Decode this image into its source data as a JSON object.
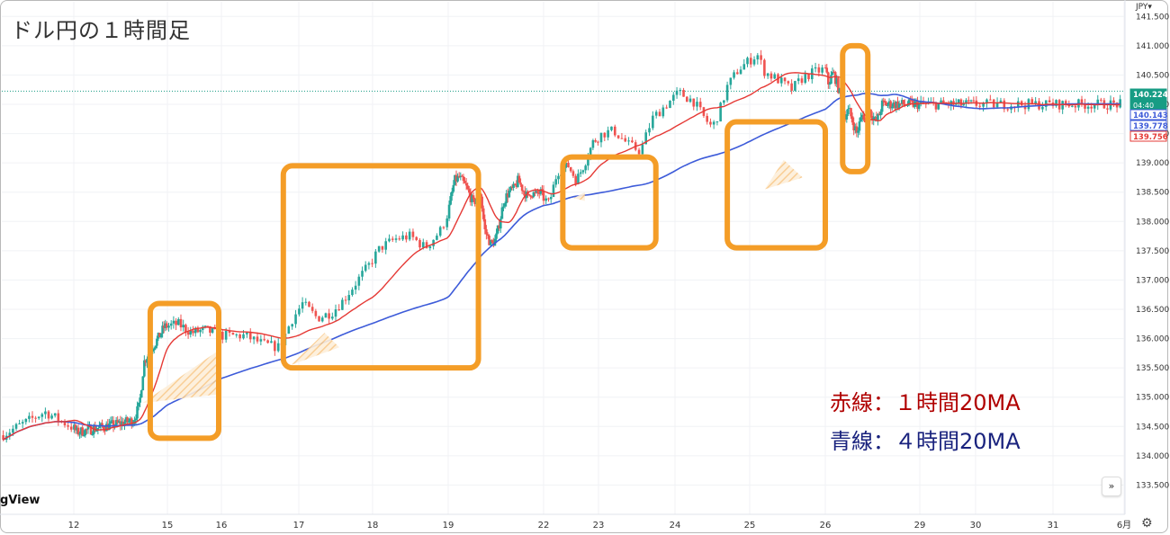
{
  "title": "ドル円の１時間足",
  "legend": {
    "red": "赤線：１時間20MA",
    "blue": "青線：４時間20MA"
  },
  "watermark": "gView",
  "currency": "JPY",
  "settings_icon": "gear-icon",
  "scroll_icon": "double-chevron-right-icon",
  "scroll_glyph": "»",
  "gear_glyph": "⚙",
  "colors": {
    "ma1h": "#e53935",
    "ma4h": "#3d5bd9",
    "up": "#26a69a",
    "down": "#ef5350",
    "highlight": "#f49d27",
    "wedge": "#f8c98a",
    "price_badge": "#179c84",
    "ma4h_badge": "#3d5bd9",
    "ma1h_badge": "#e53935"
  },
  "chart_data": {
    "type": "candlestick",
    "ylim": [
      133.3,
      141.65
    ],
    "y_ticks": [
      "141.500",
      "141.000",
      "140.500",
      "140.000",
      "139.500",
      "139.000",
      "138.500",
      "138.000",
      "137.500",
      "137.000",
      "136.500",
      "136.000",
      "135.500",
      "135.000",
      "134.500",
      "134.000",
      "133.500"
    ],
    "x_ticks": [
      {
        "label": "12",
        "x": 12
      },
      {
        "label": "15",
        "x": 15
      },
      {
        "label": "16",
        "x": 16
      },
      {
        "label": "17",
        "x": 17
      },
      {
        "label": "18",
        "x": 18
      },
      {
        "label": "19",
        "x": 19
      },
      {
        "label": "22",
        "x": 22
      },
      {
        "label": "23",
        "x": 23
      },
      {
        "label": "24",
        "x": 24
      },
      {
        "label": "25",
        "x": 25
      },
      {
        "label": "26",
        "x": 26
      },
      {
        "label": "29",
        "x": 29
      },
      {
        "label": "30",
        "x": 30
      },
      {
        "label": "31",
        "x": 31
      },
      {
        "label": "6月",
        "x": 32
      }
    ],
    "price_labels": [
      {
        "name": "current-price",
        "value": "140.224",
        "sub": "04:40"
      },
      {
        "name": "ma4h-price",
        "value": "140.143"
      },
      {
        "name": "ma1h-price",
        "value": "139.778"
      },
      {
        "name": "low-price",
        "value": "139.756"
      }
    ],
    "current_price": 140.224,
    "candles": [
      [
        11.0,
        134.35
      ],
      [
        11.6,
        134.75
      ],
      [
        12.1,
        134.4
      ],
      [
        13.9,
        134.6
      ],
      [
        14.1,
        134.85
      ],
      [
        14.25,
        135.6
      ],
      [
        14.45,
        135.8
      ],
      [
        14.7,
        136.0
      ],
      [
        14.9,
        136.2
      ],
      [
        15.2,
        136.25
      ],
      [
        15.45,
        136.1
      ],
      [
        15.7,
        136.15
      ],
      [
        16.0,
        136.05
      ],
      [
        16.3,
        136.05
      ],
      [
        16.55,
        135.9
      ],
      [
        16.75,
        135.85
      ],
      [
        16.9,
        136.3
      ],
      [
        17.05,
        136.6
      ],
      [
        17.25,
        136.35
      ],
      [
        17.45,
        136.45
      ],
      [
        17.6,
        136.65
      ],
      [
        17.8,
        137.0
      ],
      [
        17.95,
        137.25
      ],
      [
        18.1,
        137.55
      ],
      [
        18.3,
        137.7
      ],
      [
        18.5,
        137.75
      ],
      [
        18.7,
        137.55
      ],
      [
        18.9,
        137.85
      ],
      [
        19.05,
        138.3
      ],
      [
        19.2,
        138.7
      ],
      [
        19.35,
        138.75
      ],
      [
        19.55,
        138.6
      ],
      [
        19.8,
        138.3
      ],
      [
        20.0,
        138.55
      ],
      [
        20.15,
        137.85
      ],
      [
        20.35,
        137.6
      ],
      [
        20.5,
        137.7
      ],
      [
        20.6,
        137.95
      ],
      [
        20.75,
        138.35
      ],
      [
        20.9,
        138.5
      ],
      [
        21.05,
        138.55
      ],
      [
        21.2,
        138.7
      ],
      [
        21.35,
        138.55
      ],
      [
        21.5,
        138.4
      ],
      [
        21.6,
        138.5
      ],
      [
        21.75,
        138.45
      ],
      [
        21.9,
        138.5
      ],
      [
        22.1,
        138.3
      ],
      [
        22.25,
        138.85
      ],
      [
        22.45,
        138.95
      ],
      [
        22.6,
        138.7
      ],
      [
        22.75,
        139.0
      ],
      [
        22.9,
        139.35
      ],
      [
        23.05,
        139.5
      ],
      [
        23.2,
        139.55
      ],
      [
        23.4,
        139.3
      ],
      [
        23.55,
        139.2
      ],
      [
        23.7,
        139.75
      ],
      [
        23.85,
        139.95
      ],
      [
        24.05,
        140.2
      ],
      [
        24.25,
        140.05
      ],
      [
        24.4,
        139.75
      ],
      [
        24.5,
        139.6
      ],
      [
        24.6,
        139.9
      ],
      [
        24.7,
        140.3
      ],
      [
        24.85,
        140.6
      ],
      [
        25.0,
        140.75
      ],
      [
        25.1,
        140.85
      ],
      [
        25.2,
        140.55
      ],
      [
        25.4,
        140.4
      ],
      [
        25.55,
        140.25
      ],
      [
        25.7,
        140.45
      ],
      [
        25.85,
        140.55
      ],
      [
        26.0,
        140.6
      ],
      [
        26.1,
        140.35
      ],
      [
        26.25,
        140.55
      ],
      [
        26.4,
        140.3
      ],
      [
        26.5,
        140.1
      ],
      [
        26.6,
        139.8
      ],
      [
        26.75,
        139.9
      ],
      [
        26.9,
        139.65
      ],
      [
        27.0,
        139.5
      ],
      [
        27.1,
        139.7
      ],
      [
        27.2,
        139.85
      ],
      [
        27.3,
        139.6
      ],
      [
        27.4,
        139.9
      ],
      [
        27.5,
        139.8
      ],
      [
        27.6,
        139.7
      ],
      [
        27.7,
        139.8
      ],
      [
        27.8,
        140.0
      ]
    ]
  }
}
